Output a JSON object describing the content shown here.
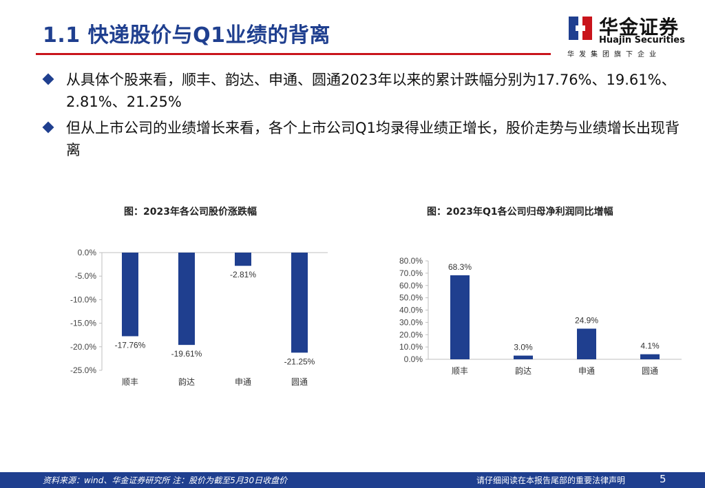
{
  "title": "1.1 快递股价与Q1业绩的背离",
  "logo": {
    "cn": "华金证券",
    "en": "Huajin Securities",
    "tagline": "华发集团旗下企业"
  },
  "bullets": [
    "从具体个股来看，顺丰、韵达、申通、圆通2023年以来的累计跌幅分别为17.76%、19.61%、2.81%、21.25%",
    "但从上市公司的业绩增长来看，各个上市公司Q1均录得业绩正增长，股价走势与业绩增长出现背离"
  ],
  "charts": [
    {
      "title": "图：2023年各公司股价涨跌幅"
    },
    {
      "title": "图：2023年Q1各公司归母净利润同比增幅"
    }
  ],
  "chart_data": [
    {
      "type": "bar",
      "title": "图：2023年各公司股价涨跌幅",
      "categories": [
        "顺丰",
        "韵达",
        "申通",
        "圆通"
      ],
      "values": [
        -17.76,
        -19.61,
        -2.81,
        -21.25
      ],
      "value_labels": [
        "-17.76%",
        "-19.61%",
        "-2.81%",
        "-21.25%"
      ],
      "ylim": [
        -25,
        0
      ],
      "yticks": [
        "0.0%",
        "-5.0%",
        "-10.0%",
        "-15.0%",
        "-20.0%",
        "-25.0%"
      ],
      "ytick_values": [
        0,
        -5,
        -10,
        -15,
        -20,
        -25
      ],
      "bar_color": "#1f3f8f",
      "grid": false
    },
    {
      "type": "bar",
      "title": "图：2023年Q1各公司归母净利润同比增幅",
      "categories": [
        "顺丰",
        "韵达",
        "申通",
        "圆通"
      ],
      "values": [
        68.3,
        3.0,
        24.9,
        4.1
      ],
      "value_labels": [
        "68.3%",
        "3.0%",
        "24.9%",
        "4.1%"
      ],
      "ylim": [
        0,
        80
      ],
      "yticks": [
        "80.0%",
        "70.0%",
        "60.0%",
        "50.0%",
        "40.0%",
        "30.0%",
        "20.0%",
        "10.0%",
        "0.0%"
      ],
      "ytick_values": [
        80,
        70,
        60,
        50,
        40,
        30,
        20,
        10,
        0
      ],
      "bar_color": "#1f3f8f",
      "grid": false
    }
  ],
  "footer": {
    "source": "资料来源：wind、华金证券研究所 注：股价为截至5月30日收盘价",
    "legal": "请仔细阅读在本报告尾部的重要法律声明",
    "page": "5"
  },
  "colors": {
    "brand_blue": "#1f3f8f",
    "accent_red": "#c9141b"
  }
}
